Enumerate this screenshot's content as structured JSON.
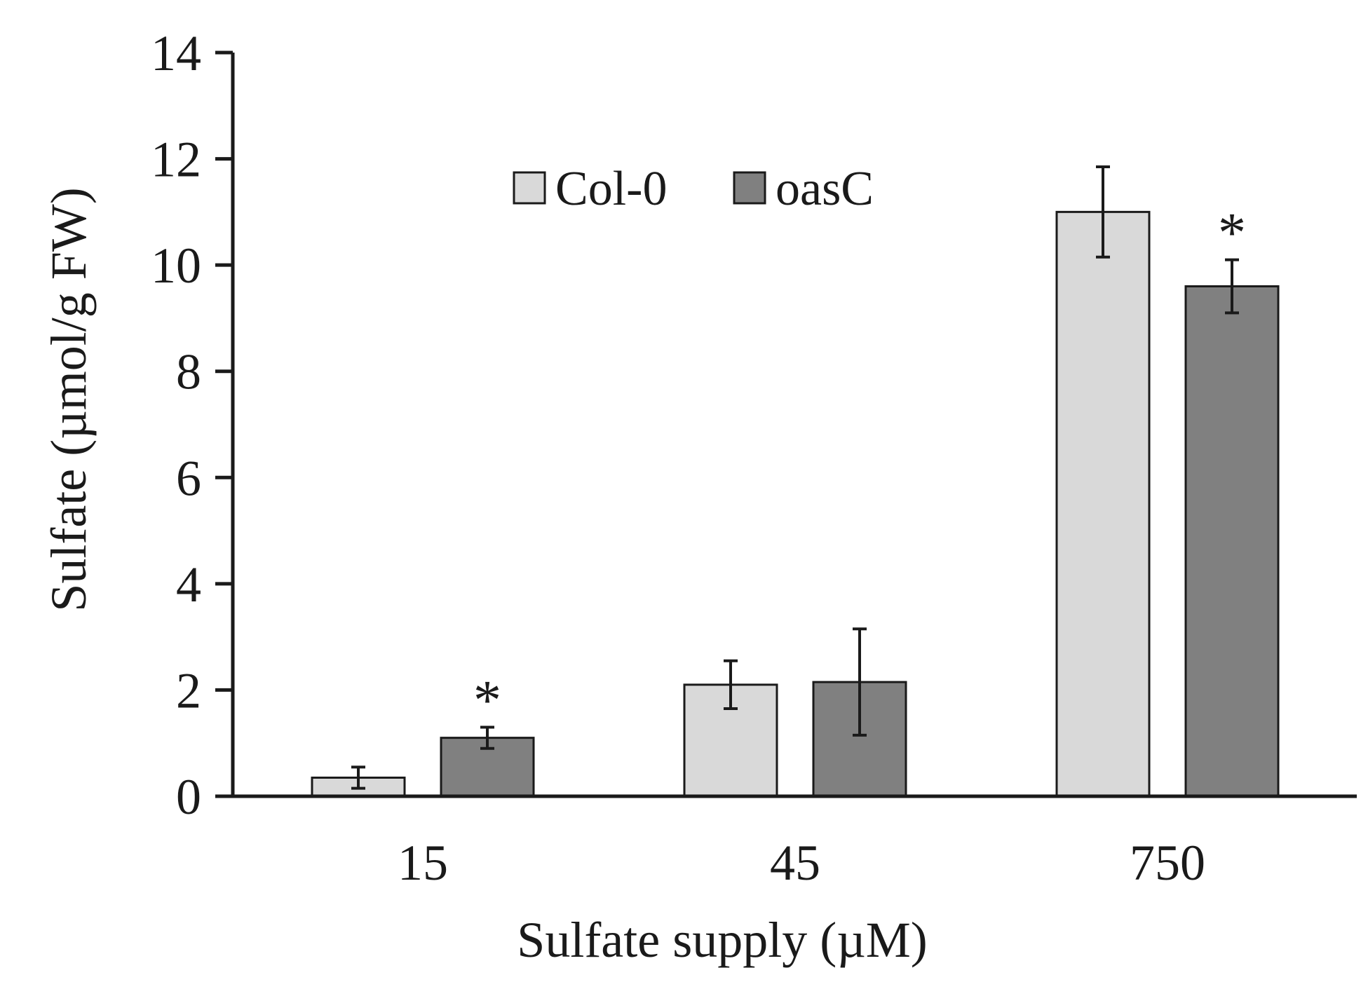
{
  "chart_data": {
    "type": "bar",
    "title": "",
    "xlabel": "Sulfate supply (µM)",
    "ylabel": "Sulfate (µmol/g FW)",
    "ylim": [
      0,
      14
    ],
    "yticks": [
      0,
      2,
      4,
      6,
      8,
      10,
      12,
      14
    ],
    "categories": [
      "15",
      "45",
      "750"
    ],
    "series": [
      {
        "name": "Col-0",
        "color": "#d9d9d9",
        "values": [
          0.35,
          2.1,
          11.0
        ],
        "errors": [
          0.2,
          0.45,
          0.85
        ],
        "significance": [
          "",
          "",
          ""
        ]
      },
      {
        "name": "oasC",
        "color": "#808080",
        "values": [
          1.1,
          2.15,
          9.6
        ],
        "errors": [
          0.2,
          1.0,
          0.5
        ],
        "significance": [
          "*",
          "",
          "*"
        ]
      }
    ],
    "legend": {
      "position": "top-center"
    },
    "grid": false
  }
}
